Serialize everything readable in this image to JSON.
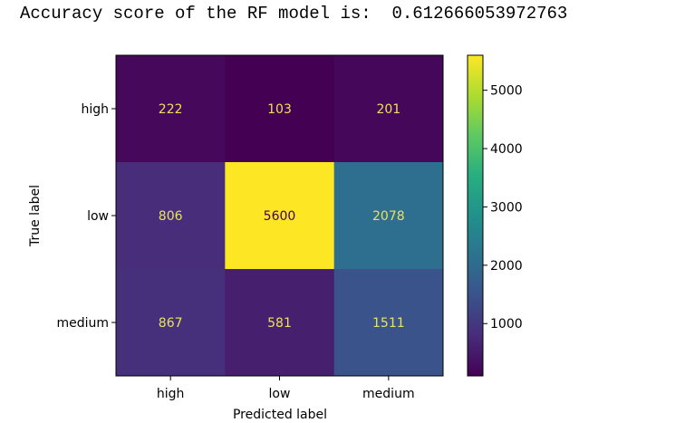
{
  "output": {
    "accuracy_line": "Accuracy score of the RF model is:  0.612666053972763"
  },
  "chart_data": {
    "type": "heatmap",
    "title": "",
    "xlabel": "Predicted label",
    "ylabel": "True label",
    "x_categories": [
      "high",
      "low",
      "medium"
    ],
    "y_categories": [
      "high",
      "low",
      "medium"
    ],
    "values": [
      [
        222,
        103,
        201
      ],
      [
        806,
        5600,
        2078
      ],
      [
        867,
        581,
        1511
      ]
    ],
    "colormap": "viridis",
    "colorbar": {
      "ticks": [
        1000,
        2000,
        3000,
        4000,
        5000
      ],
      "range": [
        103,
        5600
      ]
    }
  }
}
